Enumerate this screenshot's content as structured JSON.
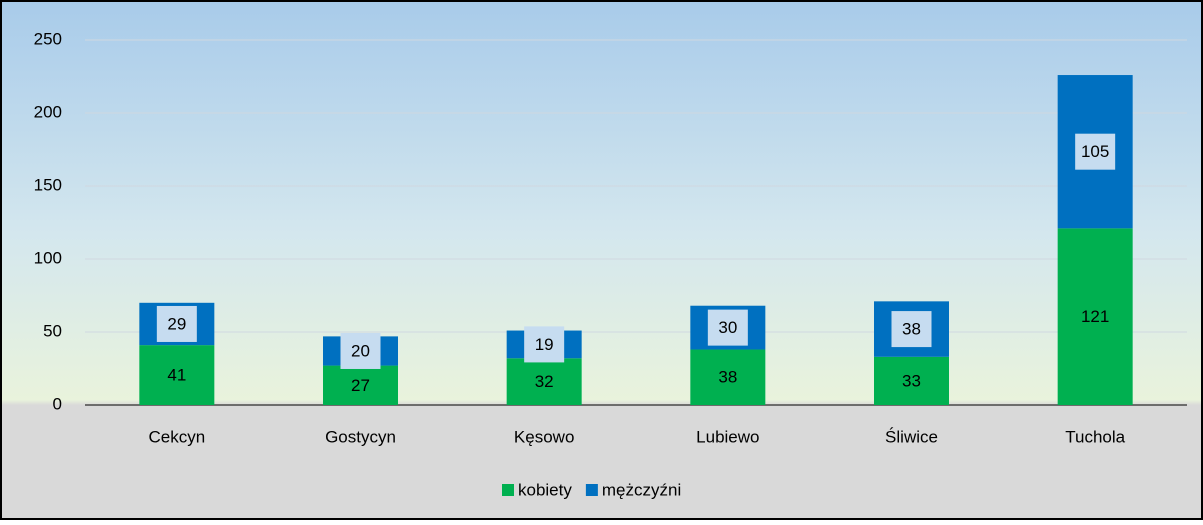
{
  "chart_data": {
    "type": "stacked-bar",
    "categories": [
      "Cekcyn",
      "Gostycyn",
      "Kęsowo",
      "Lubiewo",
      "Śliwice",
      "Tuchola"
    ],
    "series": [
      {
        "name": "kobiety",
        "color": "#00b050",
        "values": [
          41,
          27,
          32,
          38,
          33,
          121
        ]
      },
      {
        "name": "mężczyźni",
        "color": "#0070c0",
        "values": [
          29,
          20,
          19,
          30,
          38,
          105
        ]
      }
    ],
    "ylim": [
      0,
      250
    ],
    "yticks": [
      0,
      50,
      100,
      150,
      200,
      250
    ],
    "grid": true,
    "legend": "bottom"
  }
}
